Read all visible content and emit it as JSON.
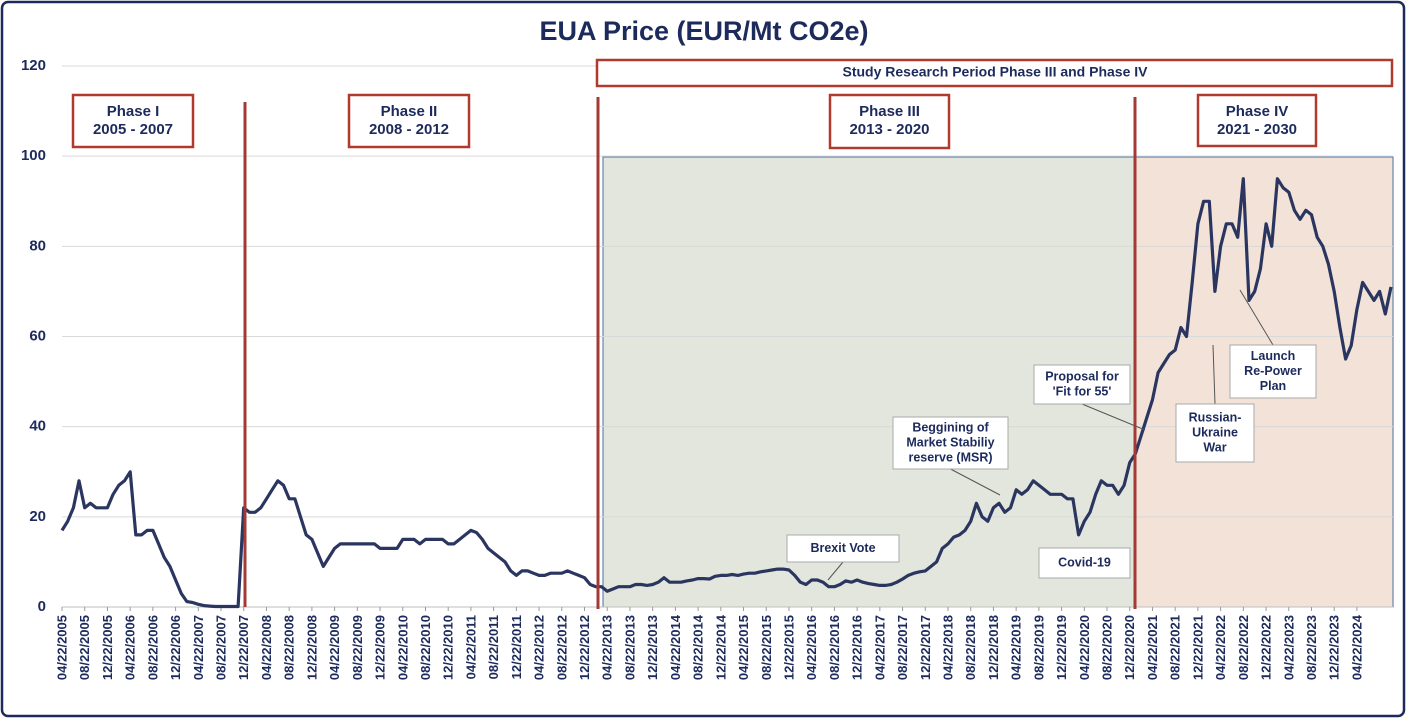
{
  "chart_data": {
    "type": "line",
    "title": "EUA Price (EUR/Mt CO2e)",
    "color": "#2b3660",
    "ylim": [
      0,
      120
    ],
    "yticks": [
      0,
      20,
      40,
      60,
      80,
      100,
      120
    ],
    "grid": true,
    "xlim": [
      "04/22/2005",
      "10/22/2024"
    ],
    "xticks": [
      "04/22/2005",
      "08/22/2005",
      "12/22/2005",
      "04/22/2006",
      "08/22/2006",
      "12/22/2006",
      "04/22/2007",
      "08/22/2007",
      "12/22/2007",
      "04/22/2008",
      "08/22/2008",
      "12/22/2008",
      "04/22/2009",
      "08/22/2009",
      "12/22/2009",
      "04/22/2010",
      "08/22/2010",
      "12/22/2010",
      "04/22/2011",
      "08/22/2011",
      "12/22/2011",
      "04/22/2012",
      "08/22/2012",
      "12/22/2012",
      "04/22/2013",
      "08/22/2013",
      "12/22/2013",
      "04/22/2014",
      "08/22/2014",
      "12/22/2014",
      "04/22/2015",
      "08/22/2015",
      "12/22/2015",
      "04/22/2016",
      "08/22/2016",
      "12/22/2016",
      "04/22/2017",
      "08/22/2017",
      "12/22/2017",
      "04/22/2018",
      "08/22/2018",
      "12/22/2018",
      "04/22/2019",
      "08/22/2019",
      "12/22/2019",
      "04/22/2020",
      "08/22/2020",
      "12/22/2020",
      "04/22/2021",
      "08/22/2021",
      "12/22/2021",
      "04/22/2022",
      "08/22/2022",
      "12/22/2022",
      "04/22/2023",
      "08/22/2023",
      "12/22/2023",
      "04/22/2024"
    ],
    "x": [
      "04/22/2005",
      "05/22/2005",
      "06/22/2005",
      "07/22/2005",
      "08/22/2005",
      "09/22/2005",
      "10/22/2005",
      "11/22/2005",
      "12/22/2005",
      "01/22/2006",
      "02/22/2006",
      "03/22/2006",
      "04/22/2006",
      "05/22/2006",
      "06/22/2006",
      "07/22/2006",
      "08/22/2006",
      "09/22/2006",
      "10/22/2006",
      "11/22/2006",
      "12/22/2006",
      "01/22/2007",
      "02/22/2007",
      "03/22/2007",
      "04/22/2007",
      "05/22/2007",
      "06/22/2007",
      "07/22/2007",
      "08/22/2007",
      "09/22/2007",
      "10/22/2007",
      "11/22/2007",
      "12/22/2007",
      "01/22/2008",
      "02/22/2008",
      "03/22/2008",
      "04/22/2008",
      "05/22/2008",
      "06/22/2008",
      "07/22/2008",
      "08/22/2008",
      "09/22/2008",
      "10/22/2008",
      "11/22/2008",
      "12/22/2008",
      "01/22/2009",
      "02/22/2009",
      "03/22/2009",
      "04/22/2009",
      "05/22/2009",
      "06/22/2009",
      "07/22/2009",
      "08/22/2009",
      "09/22/2009",
      "10/22/2009",
      "11/22/2009",
      "12/22/2009",
      "01/22/2010",
      "02/22/2010",
      "03/22/2010",
      "04/22/2010",
      "05/22/2010",
      "06/22/2010",
      "07/22/2010",
      "08/22/2010",
      "09/22/2010",
      "10/22/2010",
      "11/22/2010",
      "12/22/2010",
      "01/22/2011",
      "02/22/2011",
      "03/22/2011",
      "04/22/2011",
      "05/22/2011",
      "06/22/2011",
      "07/22/2011",
      "08/22/2011",
      "09/22/2011",
      "10/22/2011",
      "11/22/2011",
      "12/22/2011",
      "01/22/2012",
      "02/22/2012",
      "03/22/2012",
      "04/22/2012",
      "05/22/2012",
      "06/22/2012",
      "07/22/2012",
      "08/22/2012",
      "09/22/2012",
      "10/22/2012",
      "11/22/2012",
      "12/22/2012",
      "01/22/2013",
      "02/22/2013",
      "03/22/2013",
      "04/22/2013",
      "05/22/2013",
      "06/22/2013",
      "07/22/2013",
      "08/22/2013",
      "09/22/2013",
      "10/22/2013",
      "11/22/2013",
      "12/22/2013",
      "01/22/2014",
      "02/22/2014",
      "03/22/2014",
      "04/22/2014",
      "05/22/2014",
      "06/22/2014",
      "07/22/2014",
      "08/22/2014",
      "09/22/2014",
      "10/22/2014",
      "11/22/2014",
      "12/22/2014",
      "01/22/2015",
      "02/22/2015",
      "03/22/2015",
      "04/22/2015",
      "05/22/2015",
      "06/22/2015",
      "07/22/2015",
      "08/22/2015",
      "09/22/2015",
      "10/22/2015",
      "11/22/2015",
      "12/22/2015",
      "01/22/2016",
      "02/22/2016",
      "03/22/2016",
      "04/22/2016",
      "05/22/2016",
      "06/22/2016",
      "07/22/2016",
      "08/22/2016",
      "09/22/2016",
      "10/22/2016",
      "11/22/2016",
      "12/22/2016",
      "01/22/2017",
      "02/22/2017",
      "03/22/2017",
      "04/22/2017",
      "05/22/2017",
      "06/22/2017",
      "07/22/2017",
      "08/22/2017",
      "09/22/2017",
      "10/22/2017",
      "11/22/2017",
      "12/22/2017",
      "01/22/2018",
      "02/22/2018",
      "03/22/2018",
      "04/22/2018",
      "05/22/2018",
      "06/22/2018",
      "07/22/2018",
      "08/22/2018",
      "09/22/2018",
      "10/22/2018",
      "11/22/2018",
      "12/22/2018",
      "01/22/2019",
      "02/22/2019",
      "03/22/2019",
      "04/22/2019",
      "05/22/2019",
      "06/22/2019",
      "07/22/2019",
      "08/22/2019",
      "09/22/2019",
      "10/22/2019",
      "11/22/2019",
      "12/22/2019",
      "01/22/2020",
      "02/22/2020",
      "03/22/2020",
      "04/22/2020",
      "05/22/2020",
      "06/22/2020",
      "07/22/2020",
      "08/22/2020",
      "09/22/2020",
      "10/22/2020",
      "11/22/2020",
      "12/22/2020",
      "01/22/2021",
      "02/22/2021",
      "03/22/2021",
      "04/22/2021",
      "05/22/2021",
      "06/22/2021",
      "07/22/2021",
      "08/22/2021",
      "09/22/2021",
      "10/22/2021",
      "11/22/2021",
      "12/22/2021",
      "01/22/2022",
      "02/22/2022",
      "03/22/2022",
      "04/22/2022",
      "05/22/2022",
      "06/22/2022",
      "07/22/2022",
      "08/22/2022",
      "09/22/2022",
      "10/22/2022",
      "11/22/2022",
      "12/22/2022",
      "01/22/2023",
      "02/22/2023",
      "03/22/2023",
      "04/22/2023",
      "05/22/2023",
      "06/22/2023",
      "07/22/2023",
      "08/22/2023",
      "09/22/2023",
      "10/22/2023",
      "11/22/2023",
      "12/22/2023",
      "01/22/2024",
      "02/22/2024",
      "03/22/2024",
      "04/22/2024",
      "05/22/2024",
      "06/22/2024",
      "07/22/2024",
      "08/22/2024",
      "09/22/2024",
      "10/22/2024"
    ],
    "values": [
      17,
      19,
      22,
      28,
      22,
      23,
      22,
      22,
      22,
      25,
      27,
      28,
      30,
      16,
      16,
      17,
      17,
      14,
      11,
      9,
      6,
      3,
      1.2,
      1,
      0.6,
      0.3,
      0.2,
      0.1,
      0.1,
      0.1,
      0.1,
      0.1,
      22,
      21,
      21,
      22,
      24,
      26,
      28,
      27,
      24,
      24,
      20,
      16,
      15,
      12,
      9,
      11,
      13,
      14,
      14,
      14,
      14,
      14,
      14,
      14,
      13,
      13,
      13,
      13,
      15,
      15,
      15,
      14,
      15,
      15,
      15,
      15,
      14,
      14,
      15,
      16,
      17,
      16.5,
      15,
      13,
      12,
      11,
      10,
      8,
      7,
      8,
      8,
      7.5,
      7,
      7,
      7.5,
      7.5,
      7.5,
      8,
      7.5,
      7,
      6.5,
      5,
      4.5,
      4.5,
      3.5,
      4,
      4.5,
      4.5,
      4.5,
      5,
      5,
      4.8,
      5,
      5.5,
      6.5,
      5.5,
      5.5,
      5.5,
      5.8,
      6,
      6.3,
      6.3,
      6.2,
      6.8,
      7,
      7,
      7.2,
      7,
      7.3,
      7.5,
      7.5,
      7.8,
      8,
      8.2,
      8.4,
      8.4,
      8.2,
      7,
      5.5,
      5,
      6,
      6,
      5.5,
      4.5,
      4.5,
      5,
      5.8,
      5.5,
      6,
      5.5,
      5.2,
      5,
      4.8,
      4.8,
      5,
      5.5,
      6.2,
      7,
      7.5,
      7.8,
      8,
      9,
      10,
      13,
      14,
      15.5,
      16,
      17,
      19,
      23,
      20,
      19,
      22,
      23,
      21,
      22,
      26,
      25,
      26,
      28,
      27,
      26,
      25,
      25,
      25,
      24,
      24,
      16,
      19,
      21,
      25,
      28,
      27,
      27,
      25,
      27,
      32,
      34,
      38,
      42,
      46,
      52,
      54,
      56,
      57,
      62,
      60,
      72,
      85,
      90,
      90,
      70,
      80,
      85,
      85,
      82,
      95,
      68,
      70,
      75,
      85,
      80,
      95,
      93,
      92,
      88,
      86,
      88,
      87,
      82,
      80,
      76,
      70,
      62,
      55,
      58,
      66,
      72,
      70,
      68,
      70,
      65,
      71
    ],
    "period_label": "Study Research Period Phase III and Phase IV",
    "phases": [
      {
        "name": "Phase I",
        "years": "2005 - 2007"
      },
      {
        "name": "Phase II",
        "years": "2008 - 2012"
      },
      {
        "name": "Phase III",
        "years": "2013 - 2020"
      },
      {
        "name": "Phase IV",
        "years": "2021 - 2030"
      }
    ],
    "annotations": [
      {
        "lines": [
          "Brexit Vote"
        ]
      },
      {
        "lines": [
          "Beggining of",
          "Market Stabiliy",
          "reserve (MSR)"
        ]
      },
      {
        "lines": [
          "Proposal for",
          "'Fit for 55'"
        ]
      },
      {
        "lines": [
          "Covid-19"
        ]
      },
      {
        "lines": [
          "Russian-",
          "Ukraine",
          "War"
        ]
      },
      {
        "lines": [
          "Launch",
          "Re-Power",
          "Plan"
        ]
      }
    ]
  }
}
